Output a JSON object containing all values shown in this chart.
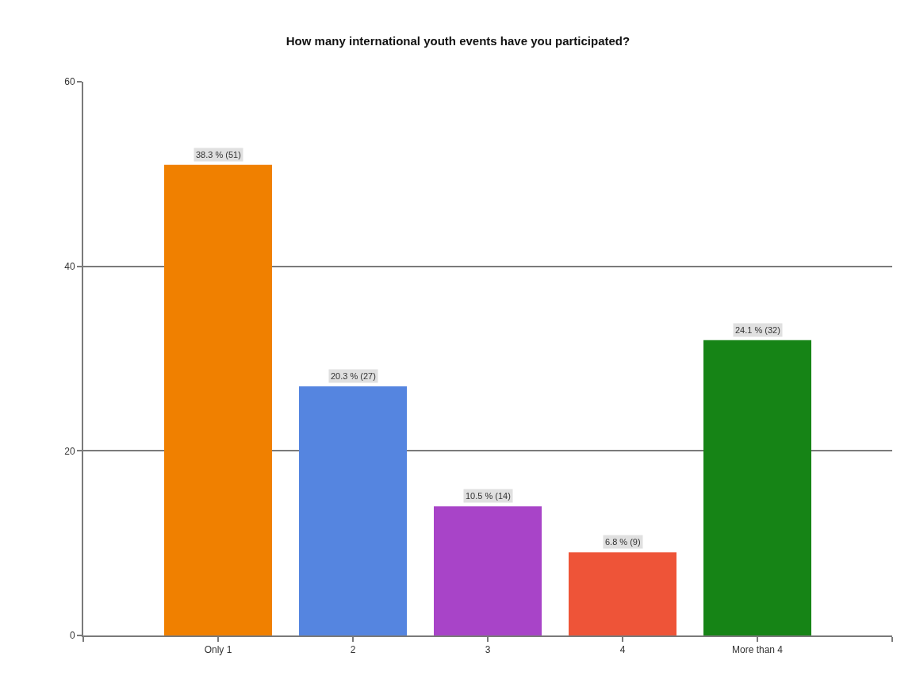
{
  "chart_data": {
    "type": "bar",
    "title": "How many international youth events have you participated?",
    "categories": [
      "Only 1",
      "2",
      "3",
      "4",
      "More than 4"
    ],
    "values": [
      51,
      27,
      14,
      9,
      32
    ],
    "colors": [
      "#f08000",
      "#5585e0",
      "#a844c8",
      "#ee5438",
      "#168416"
    ],
    "value_labels": [
      "38.3 % (51)",
      "20.3 % (27)",
      "10.5 % (14)",
      "6.8 % (9)",
      "24.1 % (32)"
    ],
    "ylim": [
      0,
      60
    ],
    "yticks": [
      0,
      20,
      40,
      60
    ],
    "grid": "y"
  }
}
